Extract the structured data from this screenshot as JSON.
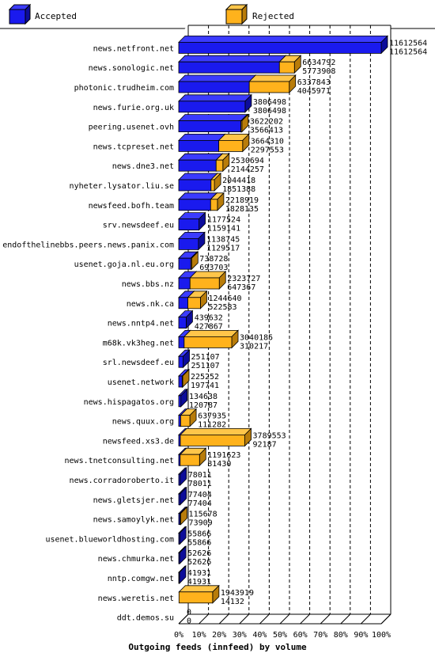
{
  "colors": {
    "accepted_face": "#1a1aee",
    "accepted_top": "#3b3bff",
    "accepted_side": "#0d0d9a",
    "rejected_face": "#ffb21c",
    "rejected_top": "#ffc64a",
    "rejected_side": "#b87c0a",
    "frame": "#000000",
    "grid": "#000000"
  },
  "chart_data": {
    "type": "bar",
    "orientation": "horizontal",
    "stacked_3d": true,
    "xlabel": "Outgoing feeds (innfeed) by volume",
    "xlim_percent": [
      0,
      100
    ],
    "x_ticks": [
      "0%",
      "10%",
      "20%",
      "30%",
      "40%",
      "50%",
      "60%",
      "70%",
      "80%",
      "90%",
      "100%"
    ],
    "grid": true,
    "legend_position": "top",
    "series": [
      {
        "name": "Accepted",
        "color": "#1a1aee"
      },
      {
        "name": "Rejected",
        "color": "#ffb21c"
      }
    ],
    "rows": [
      {
        "host": "news.netfront.net",
        "offered": 11612564,
        "accepted": 11612564
      },
      {
        "host": "news.sonologic.net",
        "offered": 6634792,
        "accepted": 5773908
      },
      {
        "host": "photonic.trudheim.com",
        "offered": 6337843,
        "accepted": 4045971
      },
      {
        "host": "news.furie.org.uk",
        "offered": 3806498,
        "accepted": 3806498
      },
      {
        "host": "peering.usenet.ovh",
        "offered": 3622202,
        "accepted": 3566413
      },
      {
        "host": "news.tcpreset.net",
        "offered": 3664310,
        "accepted": 2297553
      },
      {
        "host": "news.dne3.net",
        "offered": 2530694,
        "accepted": 2144257
      },
      {
        "host": "nyheter.lysator.liu.se",
        "offered": 2044418,
        "accepted": 1851388
      },
      {
        "host": "newsfeed.bofh.team",
        "offered": 2218919,
        "accepted": 1828135
      },
      {
        "host": "srv.newsdeef.eu",
        "offered": 1177524,
        "accepted": 1159141
      },
      {
        "host": "endofthelinebbs.peers.news.panix.com",
        "offered": 1138745,
        "accepted": 1129517
      },
      {
        "host": "usenet.goja.nl.eu.org",
        "offered": 738728,
        "accepted": 693703
      },
      {
        "host": "news.bbs.nz",
        "offered": 2323727,
        "accepted": 647367
      },
      {
        "host": "news.nk.ca",
        "offered": 1244640,
        "accepted": 522583
      },
      {
        "host": "news.nntp4.net",
        "offered": 439632,
        "accepted": 427867
      },
      {
        "host": "m68k.vk3heg.net",
        "offered": 3040185,
        "accepted": 310217
      },
      {
        "host": "srl.newsdeef.eu",
        "offered": 251107,
        "accepted": 251107
      },
      {
        "host": "usenet.network",
        "offered": 225252,
        "accepted": 197741
      },
      {
        "host": "news.hispagatos.org",
        "offered": 134638,
        "accepted": 120787
      },
      {
        "host": "news.quux.org",
        "offered": 637935,
        "accepted": 111282
      },
      {
        "host": "newsfeed.xs3.de",
        "offered": 3789553,
        "accepted": 92187
      },
      {
        "host": "news.tnetconsulting.net",
        "offered": 1191623,
        "accepted": 81430
      },
      {
        "host": "news.corradoroberto.it",
        "offered": 78011,
        "accepted": 78011
      },
      {
        "host": "news.gletsjer.net",
        "offered": 77404,
        "accepted": 77404
      },
      {
        "host": "news.samoylyk.net",
        "offered": 115678,
        "accepted": 73909
      },
      {
        "host": "usenet.blueworldhosting.com",
        "offered": 55866,
        "accepted": 55866
      },
      {
        "host": "news.chmurka.net",
        "offered": 52626,
        "accepted": 52626
      },
      {
        "host": "nntp.comgw.net",
        "offered": 41931,
        "accepted": 41931
      },
      {
        "host": "news.weretis.net",
        "offered": 1943919,
        "accepted": 14132
      },
      {
        "host": "ddt.demos.su",
        "offered": 0,
        "accepted": 0
      }
    ]
  }
}
